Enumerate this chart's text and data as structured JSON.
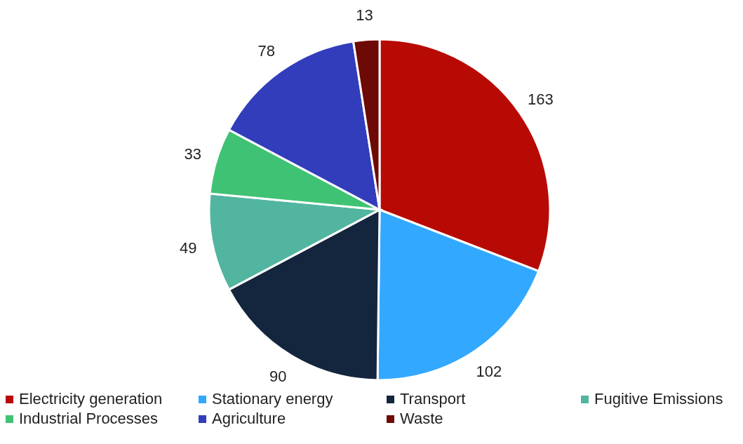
{
  "chart_data": {
    "type": "pie",
    "categories": [
      "Electricity generation",
      "Stationary energy",
      "Transport",
      "Fugitive Emissions",
      "Industrial Processes",
      "Agriculture",
      "Waste"
    ],
    "values": [
      163,
      102,
      90,
      49,
      33,
      78,
      13
    ],
    "colors": [
      "#b80a05",
      "#33a8ff",
      "#13263d",
      "#52b59f",
      "#40c274",
      "#323dbb",
      "#6e0a05"
    ],
    "data_labels": true,
    "legend": "bottom"
  }
}
